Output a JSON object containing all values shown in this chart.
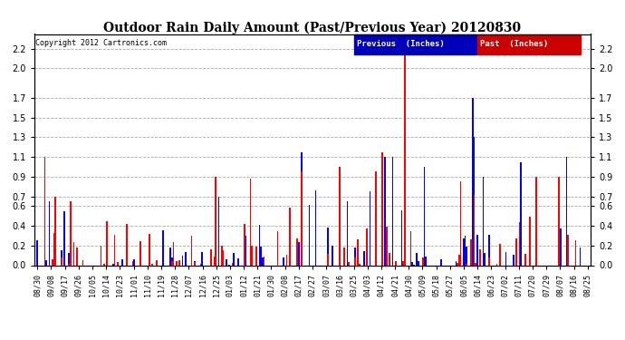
{
  "title": "Outdoor Rain Daily Amount (Past/Previous Year) 20120830",
  "copyright": "Copyright 2012 Cartronics.com",
  "legend_prev": "Previous  (Inches)",
  "legend_past": "Past  (Inches)",
  "ylim": [
    0,
    2.35
  ],
  "yticks": [
    0.0,
    0.2,
    0.4,
    0.6,
    0.7,
    0.9,
    1.1,
    1.3,
    1.5,
    1.7,
    2.0,
    2.2
  ],
  "bg_color": "#ffffff",
  "grid_color": "#aaaaaa",
  "xtick_labels": [
    "08/30",
    "09/08",
    "09/17",
    "09/26",
    "10/05",
    "10/14",
    "10/23",
    "11/01",
    "11/10",
    "11/19",
    "11/28",
    "12/07",
    "12/16",
    "12/25",
    "01/03",
    "01/12",
    "01/21",
    "01/30",
    "02/08",
    "02/17",
    "02/27",
    "03/07",
    "03/16",
    "03/25",
    "04/03",
    "04/12",
    "04/21",
    "04/30",
    "05/09",
    "05/18",
    "05/27",
    "06/05",
    "06/14",
    "06/23",
    "07/02",
    "07/11",
    "07/20",
    "07/29",
    "08/07",
    "08/16",
    "08/25"
  ],
  "n_days": 365
}
